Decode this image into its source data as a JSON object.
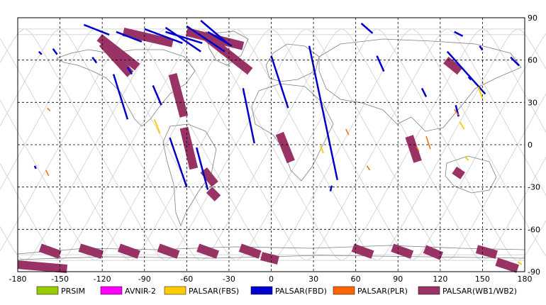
{
  "colors": {
    "prism": "#99cc00",
    "avnir2": "#ff00ff",
    "palsar_fbs": "#ffcc00",
    "palsar_fbd": "#0000cc",
    "palsar_plr": "#ff6600",
    "palsar_wb": "#993366",
    "orbit": "#c8c8c8",
    "grid": "#000000",
    "coast": "#7f7f7f"
  },
  "map": {
    "xlim": [
      -180,
      180
    ],
    "ylim": [
      -90,
      90
    ],
    "x_ticks": [
      "-180",
      "-150",
      "-120",
      "-90",
      "-60",
      "-30",
      "0",
      "30",
      "60",
      "90",
      "120",
      "150",
      "180"
    ],
    "y_ticks": [
      "90",
      "60",
      "30",
      "0",
      "-30",
      "-60",
      "-90"
    ]
  },
  "legend": [
    {
      "label": "PRSIM",
      "color": "#99cc00"
    },
    {
      "label": "AVNIR-2",
      "color": "#ff00ff"
    },
    {
      "label": "PALSAR(FBS)",
      "color": "#ffcc00"
    },
    {
      "label": "PALSAR(FBD)",
      "color": "#0000cc"
    },
    {
      "label": "PALSAR(PLR)",
      "color": "#ff6600"
    },
    {
      "label": "PALSAR(WB1/WB2)",
      "color": "#993366"
    }
  ],
  "swaths": {
    "fbd": [
      [
        [
          -155,
          68
        ],
        [
          -152,
          64
        ]
      ],
      [
        [
          -133,
          85
        ],
        [
          -115,
          78
        ]
      ],
      [
        [
          -110,
          80
        ],
        [
          -92,
          73
        ]
      ],
      [
        [
          -112,
          50
        ],
        [
          -102,
          18
        ]
      ],
      [
        [
          -127,
          62
        ],
        [
          -124,
          58
        ]
      ],
      [
        [
          -102,
          55
        ],
        [
          -99,
          50
        ]
      ],
      [
        [
          -84,
          42
        ],
        [
          -78,
          28
        ]
      ],
      [
        [
          -90,
          82
        ],
        [
          -63,
          72
        ]
      ],
      [
        [
          -75,
          83
        ],
        [
          -50,
          66
        ]
      ],
      [
        [
          -60,
          84
        ],
        [
          -33,
          66
        ]
      ],
      [
        [
          -45,
          80
        ],
        [
          -28,
          70
        ]
      ],
      [
        [
          -72,
          5
        ],
        [
          -60,
          -30
        ]
      ],
      [
        [
          -53,
          -2
        ],
        [
          -45,
          -32
        ]
      ],
      [
        [
          -20,
          40
        ],
        [
          -12,
          1
        ]
      ],
      [
        [
          0,
          63
        ],
        [
          12,
          26
        ]
      ],
      [
        [
          27,
          70
        ],
        [
          47,
          -25
        ]
      ],
      [
        [
          -75,
          80
        ],
        [
          -49,
          72
        ]
      ],
      [
        [
          -50,
          88
        ],
        [
          -30,
          71
        ]
      ],
      [
        [
          42,
          -33
        ],
        [
          43,
          -29
        ]
      ],
      [
        [
          75,
          63
        ],
        [
          80,
          52
        ]
      ],
      [
        [
          64,
          86
        ],
        [
          72,
          79
        ]
      ],
      [
        [
          130,
          80
        ],
        [
          136,
          77
        ]
      ],
      [
        [
          125,
          66
        ],
        [
          152,
          36
        ]
      ],
      [
        [
          131,
          28
        ],
        [
          133,
          20
        ]
      ],
      [
        [
          148,
          70
        ],
        [
          150,
          67
        ]
      ],
      [
        [
          170,
          62
        ],
        [
          176,
          56
        ]
      ],
      [
        [
          107,
          40
        ],
        [
          110,
          34
        ]
      ],
      [
        [
          140,
          48
        ],
        [
          142,
          46
        ]
      ],
      [
        [
          -168,
          -15
        ],
        [
          -167,
          -17
        ]
      ],
      [
        [
          -165,
          66
        ],
        [
          -163,
          64
        ]
      ]
    ],
    "wb": [
      [
        [
          -122,
          76
        ],
        [
          -95,
          55
        ]
      ],
      [
        [
          -105,
          80
        ],
        [
          -70,
          72
        ]
      ],
      [
        [
          -60,
          80
        ],
        [
          -20,
          70
        ]
      ],
      [
        [
          -48,
          78
        ],
        [
          -15,
          52
        ]
      ],
      [
        [
          -120,
          72
        ],
        [
          -100,
          50
        ]
      ],
      [
        [
          -70,
          50
        ],
        [
          -62,
          20
        ]
      ],
      [
        [
          -62,
          12
        ],
        [
          -55,
          -17
        ]
      ],
      [
        [
          -48,
          -18
        ],
        [
          -40,
          -28
        ]
      ],
      [
        [
          -44,
          -32
        ],
        [
          -38,
          -38
        ]
      ],
      [
        [
          6,
          8
        ],
        [
          14,
          -12
        ]
      ],
      [
        [
          124,
          60
        ],
        [
          134,
          52
        ]
      ],
      [
        [
          98,
          6
        ],
        [
          104,
          -12
        ]
      ],
      [
        [
          130,
          -18
        ],
        [
          136,
          -22
        ]
      ],
      [
        [
          -164,
          -73
        ],
        [
          -150,
          -78
        ]
      ],
      [
        [
          -136,
          -73
        ],
        [
          -120,
          -78
        ]
      ],
      [
        [
          -108,
          -73
        ],
        [
          -94,
          -78
        ]
      ],
      [
        [
          -80,
          -73
        ],
        [
          -66,
          -78
        ]
      ],
      [
        [
          -52,
          -73
        ],
        [
          -38,
          -78
        ]
      ],
      [
        [
          -22,
          -73
        ],
        [
          -8,
          -78
        ]
      ],
      [
        [
          -7,
          -79
        ],
        [
          5,
          -82
        ]
      ],
      [
        [
          58,
          -73
        ],
        [
          72,
          -78
        ]
      ],
      [
        [
          86,
          -73
        ],
        [
          100,
          -78
        ]
      ],
      [
        [
          109,
          -74
        ],
        [
          121,
          -79
        ]
      ],
      [
        [
          146,
          -74
        ],
        [
          160,
          -78
        ]
      ],
      [
        [
          160,
          -83
        ],
        [
          175,
          -88
        ]
      ],
      [
        [
          -180,
          -85
        ],
        [
          -145,
          -88
        ]
      ]
    ],
    "plr": [
      [
        [
          -160,
          -18
        ],
        [
          -158,
          -22
        ]
      ],
      [
        [
          -159,
          26
        ],
        [
          -157,
          24
        ]
      ],
      [
        [
          53,
          11
        ],
        [
          55,
          7
        ]
      ],
      [
        [
          68,
          -15
        ],
        [
          70,
          -18
        ]
      ],
      [
        [
          103,
          -1
        ],
        [
          105,
          -5
        ]
      ],
      [
        [
          110,
          6
        ],
        [
          113,
          -3
        ]
      ],
      [
        [
          130,
          25
        ],
        [
          133,
          21
        ]
      ]
    ],
    "fbs": [
      [
        [
          -83,
          18
        ],
        [
          -79,
          8
        ]
      ],
      [
        [
          134,
          16
        ],
        [
          137,
          11
        ]
      ],
      [
        [
          138,
          -9
        ],
        [
          140,
          -11
        ]
      ],
      [
        [
          35,
          -1
        ],
        [
          37,
          -6
        ]
      ],
      [
        [
          147,
          41
        ],
        [
          150,
          33
        ]
      ],
      [
        [
          175,
          -83
        ],
        [
          178,
          -85
        ]
      ]
    ]
  }
}
